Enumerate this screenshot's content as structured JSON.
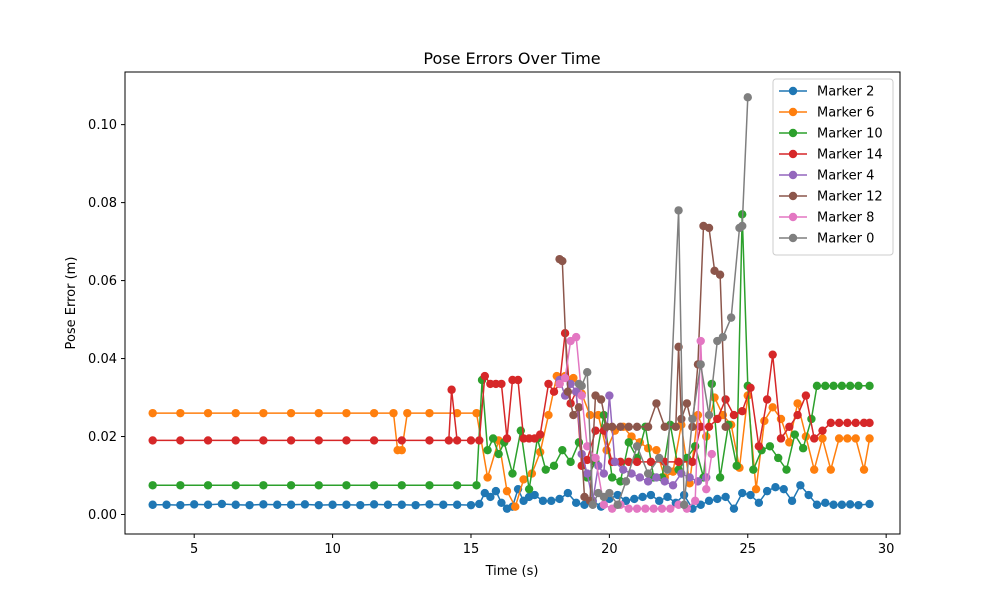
{
  "chart_data": {
    "type": "line",
    "title": "Pose Errors Over Time",
    "xlabel": "Time (s)",
    "ylabel": "Pose Error (m)",
    "xlim": [
      2.5,
      30.5
    ],
    "ylim": [
      -0.005,
      0.1135
    ],
    "xticks": [
      5,
      10,
      15,
      20,
      25,
      30
    ],
    "yticks": [
      0.0,
      0.02,
      0.04,
      0.06,
      0.08,
      0.1
    ],
    "xtick_labels": [
      "5",
      "10",
      "15",
      "20",
      "25",
      "30"
    ],
    "ytick_labels": [
      "0.00",
      "0.02",
      "0.04",
      "0.06",
      "0.08",
      "0.10"
    ],
    "grid": false,
    "legend_position": "top-right",
    "marker": "circle",
    "series": [
      {
        "name": "Marker 2",
        "color": "#1f77b4",
        "x": [
          3.5,
          4.0,
          4.5,
          5.0,
          5.5,
          6.0,
          6.5,
          7.0,
          7.5,
          8.0,
          8.5,
          9.0,
          9.5,
          10.0,
          10.5,
          11.0,
          11.5,
          12.0,
          12.5,
          13.0,
          13.5,
          14.0,
          14.5,
          15.0,
          15.3,
          15.5,
          15.7,
          15.9,
          16.1,
          16.3,
          16.5,
          16.7,
          16.9,
          17.1,
          17.3,
          17.6,
          17.9,
          18.2,
          18.5,
          18.8,
          19.1,
          19.4,
          19.7,
          20.0,
          20.3,
          20.6,
          20.9,
          21.2,
          21.5,
          21.8,
          22.1,
          22.4,
          22.7,
          23.0,
          23.3,
          23.6,
          23.9,
          24.2,
          24.5,
          24.8,
          25.1,
          25.4,
          25.7,
          26.0,
          26.3,
          26.6,
          26.9,
          27.2,
          27.5,
          27.8,
          28.1,
          28.4,
          28.7,
          29.0,
          29.4
        ],
        "y": [
          0.0025,
          0.0025,
          0.0024,
          0.0026,
          0.0025,
          0.0027,
          0.0025,
          0.0024,
          0.0026,
          0.0025,
          0.0025,
          0.0026,
          0.0024,
          0.0025,
          0.0025,
          0.0024,
          0.0026,
          0.0025,
          0.0025,
          0.0024,
          0.0026,
          0.0025,
          0.0025,
          0.0024,
          0.0027,
          0.0055,
          0.0045,
          0.006,
          0.003,
          0.0015,
          0.002,
          0.0065,
          0.0035,
          0.0045,
          0.005,
          0.0035,
          0.0035,
          0.004,
          0.0055,
          0.003,
          0.0025,
          0.0035,
          0.002,
          0.004,
          0.005,
          0.0035,
          0.004,
          0.0045,
          0.005,
          0.0035,
          0.0045,
          0.003,
          0.005,
          0.0015,
          0.0025,
          0.0035,
          0.004,
          0.0045,
          0.0015,
          0.0055,
          0.005,
          0.003,
          0.006,
          0.007,
          0.0065,
          0.0035,
          0.0075,
          0.005,
          0.0025,
          0.003,
          0.0025,
          0.0025,
          0.0026,
          0.0024,
          0.0027
        ]
      },
      {
        "name": "Marker 6",
        "color": "#ff7f0e",
        "x": [
          3.5,
          4.5,
          5.5,
          6.5,
          7.5,
          8.5,
          9.5,
          10.5,
          11.5,
          12.2,
          12.35,
          12.5,
          12.7,
          13.5,
          14.5,
          15.2,
          15.6,
          16.0,
          16.3,
          16.6,
          16.9,
          17.2,
          17.5,
          17.8,
          18.1,
          18.4,
          18.7,
          19.0,
          19.3,
          19.6,
          19.9,
          20.2,
          20.5,
          20.8,
          21.1,
          21.4,
          21.7,
          22.0,
          22.3,
          22.6,
          22.9,
          23.2,
          23.5,
          23.8,
          24.1,
          24.4,
          24.7,
          25.0,
          25.3,
          25.6,
          25.9,
          26.2,
          26.5,
          26.8,
          27.1,
          27.4,
          27.7,
          28.0,
          28.3,
          28.6,
          28.9,
          29.2,
          29.4
        ],
        "y": [
          0.026,
          0.026,
          0.026,
          0.026,
          0.026,
          0.026,
          0.026,
          0.026,
          0.026,
          0.026,
          0.0165,
          0.0165,
          0.026,
          0.026,
          0.026,
          0.026,
          0.0095,
          0.019,
          0.006,
          0.002,
          0.009,
          0.0105,
          0.016,
          0.0255,
          0.0355,
          0.0355,
          0.035,
          0.031,
          0.0255,
          0.0255,
          0.0165,
          0.0215,
          0.0225,
          0.02,
          0.0185,
          0.017,
          0.0165,
          0.0095,
          0.011,
          0.023,
          0.008,
          0.0255,
          0.02,
          0.03,
          0.0255,
          0.023,
          0.012,
          0.0305,
          0.0065,
          0.024,
          0.0275,
          0.0245,
          0.0185,
          0.0285,
          0.02,
          0.0115,
          0.0195,
          0.0115,
          0.0195,
          0.0195,
          0.0195,
          0.0115,
          0.0195
        ]
      },
      {
        "name": "Marker 10",
        "color": "#2ca02c",
        "x": [
          3.5,
          4.5,
          5.5,
          6.5,
          7.5,
          8.5,
          9.5,
          10.5,
          11.5,
          12.5,
          13.5,
          14.5,
          15.2,
          15.4,
          15.6,
          15.8,
          16.0,
          16.2,
          16.5,
          16.8,
          17.1,
          17.4,
          17.7,
          18.0,
          18.3,
          18.6,
          18.9,
          19.2,
          19.5,
          19.8,
          20.1,
          20.4,
          20.7,
          21.0,
          21.3,
          21.6,
          21.9,
          22.2,
          22.5,
          22.8,
          23.1,
          23.4,
          23.7,
          24.0,
          24.3,
          24.6,
          24.8,
          25.0,
          25.2,
          25.5,
          25.8,
          26.1,
          26.4,
          26.7,
          27.0,
          27.3,
          27.5,
          27.8,
          28.1,
          28.4,
          28.7,
          29.0,
          29.4
        ],
        "y": [
          0.0075,
          0.0075,
          0.0075,
          0.0075,
          0.0075,
          0.0075,
          0.0075,
          0.0075,
          0.0075,
          0.0075,
          0.0075,
          0.0075,
          0.0075,
          0.0345,
          0.0165,
          0.0195,
          0.0155,
          0.0185,
          0.0105,
          0.0215,
          0.0065,
          0.0195,
          0.0115,
          0.0125,
          0.0165,
          0.0135,
          0.0185,
          0.0095,
          0.0135,
          0.0255,
          0.0095,
          0.0085,
          0.0185,
          0.0145,
          0.0225,
          0.0095,
          0.0095,
          0.023,
          0.0115,
          0.0145,
          0.0175,
          0.0095,
          0.0335,
          0.0095,
          0.023,
          0.0125,
          0.077,
          0.033,
          0.0115,
          0.0165,
          0.0175,
          0.0145,
          0.0115,
          0.0205,
          0.017,
          0.0245,
          0.033,
          0.033,
          0.033,
          0.033,
          0.033,
          0.033,
          0.033
        ]
      },
      {
        "name": "Marker 14",
        "color": "#d62728",
        "x": [
          3.5,
          4.5,
          5.5,
          6.5,
          7.5,
          8.5,
          9.5,
          10.5,
          11.5,
          12.5,
          13.5,
          14.2,
          14.3,
          14.5,
          15.0,
          15.3,
          15.5,
          15.7,
          15.9,
          16.1,
          16.3,
          16.5,
          16.7,
          16.9,
          17.1,
          17.3,
          17.5,
          17.8,
          18.0,
          18.2,
          18.4,
          18.6,
          18.8,
          19.0,
          19.2,
          19.5,
          19.8,
          20.1,
          20.4,
          20.7,
          21.0,
          21.5,
          22.0,
          22.5,
          23.0,
          23.3,
          23.6,
          23.9,
          24.2,
          24.5,
          24.8,
          25.1,
          25.4,
          25.7,
          25.9,
          26.2,
          26.5,
          26.8,
          27.1,
          27.4,
          27.7,
          28.0,
          28.3,
          28.6,
          28.9,
          29.2,
          29.4
        ],
        "y": [
          0.019,
          0.019,
          0.019,
          0.019,
          0.019,
          0.019,
          0.019,
          0.019,
          0.019,
          0.019,
          0.019,
          0.019,
          0.032,
          0.019,
          0.019,
          0.019,
          0.0355,
          0.0335,
          0.0335,
          0.0335,
          0.0195,
          0.0345,
          0.0345,
          0.0195,
          0.0195,
          0.0195,
          0.0205,
          0.0335,
          0.0315,
          0.0335,
          0.0465,
          0.0285,
          0.0315,
          0.0125,
          0.014,
          0.0215,
          0.0215,
          0.0135,
          0.0135,
          0.0135,
          0.0135,
          0.0135,
          0.0135,
          0.0135,
          0.0135,
          0.0225,
          0.0225,
          0.0245,
          0.0295,
          0.0255,
          0.0265,
          0.0325,
          0.0175,
          0.0295,
          0.041,
          0.0195,
          0.0225,
          0.0255,
          0.0305,
          0.0195,
          0.0215,
          0.0235,
          0.0235,
          0.0235,
          0.0235,
          0.0235,
          0.0235
        ]
      },
      {
        "name": "Marker 4",
        "color": "#9467bd",
        "x": [
          18.2,
          18.4,
          18.6,
          18.8,
          19.0,
          19.2,
          19.4,
          19.6,
          19.8,
          20.0,
          20.2,
          20.5,
          20.8,
          21.1,
          21.4,
          21.7,
          22.0,
          22.3,
          22.6,
          22.9,
          23.2,
          23.5
        ],
        "y": [
          0.0345,
          0.0305,
          0.0335,
          0.0315,
          0.0155,
          0.0105,
          0.0035,
          0.0125,
          0.0105,
          0.0305,
          0.0135,
          0.0115,
          0.0105,
          0.0095,
          0.0085,
          0.0095,
          0.0085,
          0.0075,
          0.0105,
          0.0095,
          0.0085,
          0.0095
        ]
      },
      {
        "name": "Marker 12",
        "color": "#8c564b",
        "x": [
          18.2,
          18.3,
          18.5,
          18.7,
          18.9,
          19.1,
          19.3,
          19.5,
          19.7,
          19.9,
          20.1,
          20.4,
          20.7,
          21.0,
          21.4,
          21.7,
          22.0,
          22.4,
          22.5,
          22.6,
          22.8,
          23.0,
          23.2,
          23.4,
          23.6,
          23.8,
          24.0,
          24.2
        ],
        "y": [
          0.0655,
          0.065,
          0.0315,
          0.0255,
          0.0275,
          0.0045,
          0.0035,
          0.0305,
          0.0295,
          0.0225,
          0.0225,
          0.0225,
          0.0225,
          0.0225,
          0.0225,
          0.0285,
          0.0225,
          0.0225,
          0.043,
          0.0245,
          0.0285,
          0.0225,
          0.0385,
          0.074,
          0.0735,
          0.0625,
          0.0615,
          0.0225
        ]
      },
      {
        "name": "Marker 8",
        "color": "#e377c2",
        "x": [
          18.2,
          18.4,
          18.6,
          18.8,
          19.0,
          19.2,
          19.5,
          19.8,
          20.1,
          20.4,
          20.7,
          21.0,
          21.3,
          21.6,
          21.9,
          22.2,
          22.5,
          22.8,
          23.1,
          23.3,
          23.5,
          23.7
        ],
        "y": [
          0.0335,
          0.035,
          0.0445,
          0.0455,
          0.0305,
          0.0175,
          0.0145,
          0.0025,
          0.0015,
          0.0025,
          0.0015,
          0.0015,
          0.0015,
          0.0015,
          0.0015,
          0.0015,
          0.0025,
          0.0015,
          0.0035,
          0.0445,
          0.0065,
          0.0155
        ]
      },
      {
        "name": "Marker 0",
        "color": "#7f7f7f",
        "x": [
          18.9,
          19.0,
          19.2,
          19.4,
          19.6,
          19.8,
          20.0,
          20.3,
          20.6,
          21.0,
          21.4,
          21.8,
          22.1,
          22.5,
          22.7,
          23.0,
          23.3,
          23.6,
          23.9,
          24.1,
          24.4,
          24.7,
          24.8,
          25.0
        ],
        "y": [
          0.0335,
          0.033,
          0.0365,
          0.0025,
          0.0055,
          0.0045,
          0.0055,
          0.0025,
          0.0085,
          0.0175,
          0.0105,
          0.0145,
          0.0115,
          0.078,
          0.0025,
          0.0245,
          0.0385,
          0.0255,
          0.0445,
          0.0455,
          0.0505,
          0.0735,
          0.074,
          0.107
        ]
      }
    ]
  }
}
